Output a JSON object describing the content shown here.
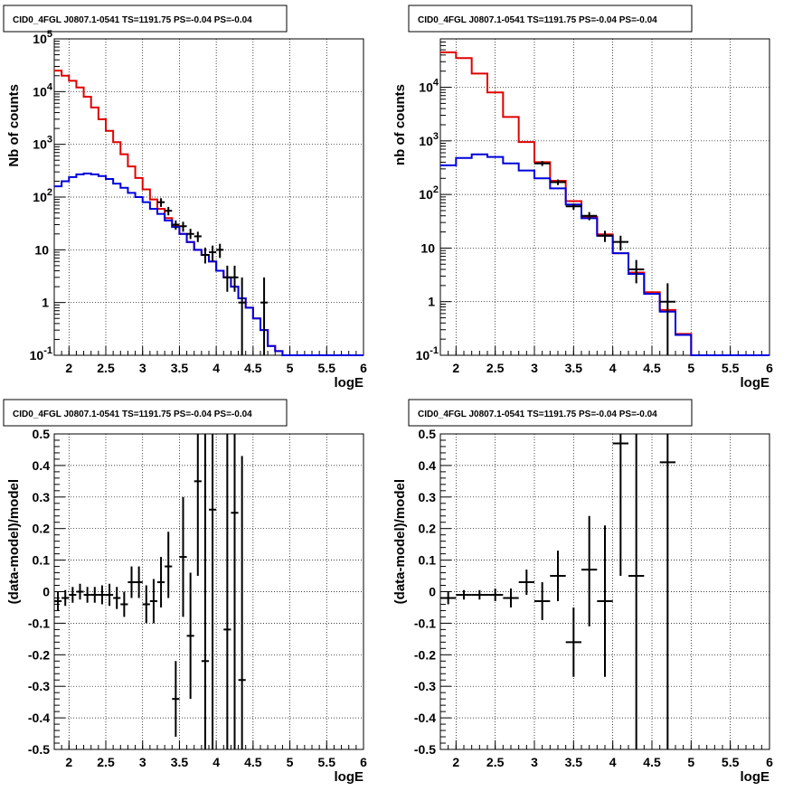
{
  "chart_data": [
    {
      "type": "line",
      "title": "CID0_4FGL J0807.1-0541 TS=1191.75 PS=-0.04 PS=-0.04",
      "xlabel": "logE",
      "ylabel": "Nb of counts",
      "xlim": [
        1.8,
        6.0
      ],
      "ylim": [
        0.1,
        100000
      ],
      "yscale": "log",
      "grid": true,
      "xticks": [
        "2",
        "2.5",
        "3",
        "3.5",
        "4",
        "4.5",
        "5",
        "5.5",
        "6"
      ],
      "yticks": [
        {
          "base": "10",
          "exp": "-1"
        },
        {
          "base": "1",
          "exp": ""
        },
        {
          "base": "10",
          "exp": ""
        },
        {
          "base": "10",
          "exp": "2"
        },
        {
          "base": "10",
          "exp": "3"
        },
        {
          "base": "10",
          "exp": "4"
        },
        {
          "base": "10",
          "exp": "5"
        }
      ],
      "series": [
        {
          "style": "step",
          "color": "#e00000",
          "edges": [
            1.8,
            1.9,
            2.0,
            2.1,
            2.2,
            2.3,
            2.4,
            2.5,
            2.6,
            2.7,
            2.8,
            2.9,
            3.0,
            3.1,
            3.2,
            3.3,
            3.4,
            3.5,
            3.6,
            3.7,
            3.8,
            3.9,
            4.0,
            4.1,
            4.2,
            4.3,
            4.4,
            4.5,
            4.6,
            4.7,
            4.8,
            4.9,
            5.0,
            6.0
          ],
          "values": [
            25000,
            20000,
            16000,
            12000,
            8000,
            5000,
            3000,
            1800,
            1100,
            650,
            380,
            230,
            140,
            90,
            60,
            40,
            28,
            20,
            14,
            10,
            8,
            6,
            4,
            3,
            2,
            1.2,
            0.8,
            0.5,
            0.3,
            0.15,
            0.12,
            0.1,
            0.1
          ]
        },
        {
          "style": "step",
          "color": "#0000dd",
          "edges": [
            1.8,
            1.9,
            2.0,
            2.1,
            2.2,
            2.3,
            2.4,
            2.5,
            2.6,
            2.7,
            2.8,
            2.9,
            3.0,
            3.1,
            3.2,
            3.3,
            3.4,
            3.5,
            3.6,
            3.7,
            3.8,
            3.9,
            4.0,
            4.1,
            4.2,
            4.3,
            4.4,
            4.5,
            4.6,
            4.7,
            4.8,
            4.9,
            5.0,
            6.0
          ],
          "values": [
            160,
            200,
            240,
            270,
            280,
            270,
            250,
            220,
            180,
            150,
            120,
            100,
            80,
            60,
            48,
            36,
            27,
            20,
            14,
            10,
            8,
            6,
            4,
            3,
            2,
            1.2,
            0.8,
            0.5,
            0.3,
            0.15,
            0.12,
            0.1,
            0.1
          ]
        },
        {
          "style": "errorbar",
          "color": "#000000",
          "x": [
            3.25,
            3.35,
            3.45,
            3.55,
            3.65,
            3.75,
            3.85,
            3.95,
            4.05,
            4.15,
            4.25,
            4.35,
            4.65
          ],
          "xerr": 0.05,
          "y": [
            80,
            55,
            30,
            28,
            20,
            18,
            8,
            9,
            10,
            3,
            3,
            1,
            1
          ],
          "ylo": [
            65,
            45,
            24,
            22,
            16,
            14,
            5.5,
            6,
            7,
            1.6,
            1.6,
            0.1,
            0.1
          ],
          "yhi": [
            95,
            65,
            36,
            34,
            25,
            22,
            11,
            12,
            13,
            5,
            5,
            3,
            3
          ]
        }
      ]
    },
    {
      "type": "line",
      "title": "CID0_4FGL J0807.1-0541 TS=1191.75 PS=-0.04 PS=-0.04",
      "xlabel": "logE",
      "ylabel": "nb of counts",
      "xlim": [
        1.8,
        6.0
      ],
      "ylim": [
        0.1,
        80000
      ],
      "yscale": "log",
      "grid": true,
      "xticks": [
        "2",
        "2.5",
        "3",
        "3.5",
        "4",
        "4.5",
        "5",
        "5.5",
        "6"
      ],
      "yticks": [
        {
          "base": "10",
          "exp": "-1"
        },
        {
          "base": "1",
          "exp": ""
        },
        {
          "base": "10",
          "exp": ""
        },
        {
          "base": "10",
          "exp": "2"
        },
        {
          "base": "10",
          "exp": "3"
        },
        {
          "base": "10",
          "exp": "4"
        }
      ],
      "series": [
        {
          "style": "step",
          "color": "#e00000",
          "edges": [
            1.8,
            2.0,
            2.2,
            2.4,
            2.6,
            2.8,
            3.0,
            3.2,
            3.4,
            3.6,
            3.8,
            4.0,
            4.2,
            4.4,
            4.6,
            4.8,
            5.0,
            6.0
          ],
          "values": [
            45000,
            35000,
            18000,
            8000,
            2800,
            950,
            400,
            180,
            75,
            38,
            18,
            8,
            3.5,
            1.5,
            0.7,
            0.25,
            0.1
          ]
        },
        {
          "style": "step",
          "color": "#0000dd",
          "edges": [
            1.8,
            2.0,
            2.2,
            2.4,
            2.6,
            2.8,
            3.0,
            3.2,
            3.4,
            3.6,
            3.8,
            4.0,
            4.2,
            4.4,
            4.6,
            4.8,
            5.0,
            6.0
          ],
          "values": [
            350,
            480,
            560,
            500,
            380,
            280,
            200,
            130,
            65,
            36,
            17,
            8,
            3.3,
            1.4,
            0.65,
            0.24,
            0.1
          ]
        },
        {
          "style": "errorbar",
          "color": "#000000",
          "x": [
            3.1,
            3.3,
            3.5,
            3.7,
            3.9,
            4.1,
            4.3,
            4.7
          ],
          "xerr": 0.1,
          "y": [
            380,
            170,
            60,
            40,
            17,
            13,
            4,
            1
          ],
          "ylo": [
            340,
            150,
            52,
            33,
            13,
            9,
            2.2,
            0.1
          ],
          "yhi": [
            420,
            190,
            68,
            47,
            21,
            17,
            6,
            2.2
          ]
        }
      ]
    },
    {
      "type": "scatter",
      "title": "CID0_4FGL J0807.1-0541 TS=1191.75 PS=-0.04 PS=-0.04",
      "xlabel": "logE",
      "ylabel": "(data-model)/model",
      "xlim": [
        1.8,
        6.0
      ],
      "ylim": [
        -0.5,
        0.5
      ],
      "yscale": "linear",
      "grid": true,
      "xticks": [
        "2",
        "2.5",
        "3",
        "3.5",
        "4",
        "4.5",
        "5",
        "5.5",
        "6"
      ],
      "yticks": [
        "-0.5",
        "-0.4",
        "-0.3",
        "-0.2",
        "-0.1",
        "0",
        "0.1",
        "0.2",
        "0.3",
        "0.4",
        "0.5"
      ],
      "series": [
        {
          "style": "errorbar",
          "color": "#000000",
          "x": [
            1.85,
            1.95,
            2.05,
            2.15,
            2.25,
            2.35,
            2.45,
            2.55,
            2.65,
            2.75,
            2.85,
            2.95,
            3.05,
            3.15,
            3.25,
            3.35,
            3.45,
            3.55,
            3.65,
            3.75,
            3.85,
            3.95,
            4.15,
            4.25,
            4.35
          ],
          "xerr": 0.05,
          "y": [
            -0.03,
            -0.02,
            -0.01,
            0.0,
            -0.01,
            -0.01,
            -0.01,
            -0.01,
            -0.02,
            -0.04,
            0.03,
            0.03,
            -0.04,
            -0.03,
            0.03,
            0.08,
            -0.34,
            0.11,
            -0.14,
            0.35,
            -0.22,
            0.26,
            -0.12,
            0.25,
            -0.28
          ],
          "ylo": [
            -0.06,
            -0.045,
            -0.035,
            -0.025,
            -0.035,
            -0.035,
            -0.04,
            -0.045,
            -0.055,
            -0.08,
            -0.02,
            -0.02,
            -0.1,
            -0.1,
            -0.05,
            -0.02,
            -0.46,
            -0.08,
            -0.34,
            0.05,
            -0.5,
            -0.5,
            -0.5,
            -0.5,
            -0.5
          ],
          "yhi": [
            0.0,
            0.005,
            0.015,
            0.025,
            0.015,
            0.015,
            0.02,
            0.025,
            0.015,
            0.0,
            0.08,
            0.08,
            0.02,
            0.04,
            0.11,
            0.19,
            -0.22,
            0.3,
            0.06,
            0.5,
            0.5,
            0.5,
            0.5,
            0.5,
            0.43
          ]
        }
      ]
    },
    {
      "type": "scatter",
      "title": "CID0_4FGL J0807.1-0541 TS=1191.75 PS=-0.04 PS=-0.04",
      "xlabel": "logE",
      "ylabel": "(data-model)/model",
      "xlim": [
        1.8,
        6.0
      ],
      "ylim": [
        -0.5,
        0.5
      ],
      "yscale": "linear",
      "grid": true,
      "xticks": [
        "2",
        "2.5",
        "3",
        "3.5",
        "4",
        "4.5",
        "5",
        "5.5",
        "6"
      ],
      "yticks": [
        "-0.5",
        "-0.4",
        "-0.3",
        "-0.2",
        "-0.1",
        "0",
        "0.1",
        "0.2",
        "0.3",
        "0.4",
        "0.5"
      ],
      "series": [
        {
          "style": "errorbar",
          "color": "#000000",
          "x": [
            1.9,
            2.1,
            2.3,
            2.5,
            2.7,
            2.9,
            3.1,
            3.3,
            3.5,
            3.7,
            3.9,
            4.1,
            4.3,
            4.7
          ],
          "xerr": 0.1,
          "y": [
            -0.02,
            -0.01,
            -0.01,
            -0.01,
            -0.02,
            0.03,
            -0.03,
            0.05,
            -0.16,
            0.07,
            -0.03,
            0.47,
            0.05,
            0.41
          ],
          "ylo": [
            -0.04,
            -0.025,
            -0.025,
            -0.03,
            -0.05,
            -0.01,
            -0.09,
            -0.03,
            -0.27,
            -0.11,
            -0.27,
            0.05,
            -0.5,
            -0.5
          ],
          "yhi": [
            0.0,
            0.005,
            0.005,
            0.01,
            0.01,
            0.07,
            0.03,
            0.13,
            -0.05,
            0.24,
            0.21,
            0.5,
            0.5,
            0.5
          ]
        }
      ]
    }
  ]
}
